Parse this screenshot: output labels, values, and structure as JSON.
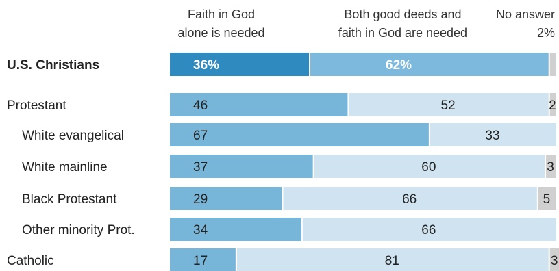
{
  "chart_data": {
    "type": "bar",
    "stacked": true,
    "orientation": "horizontal",
    "xlim": [
      0,
      100
    ],
    "legend_placement": "top",
    "series": [
      {
        "name": "Faith in God alone is needed",
        "name_lines": [
          "Faith in God",
          "alone is needed"
        ],
        "color": "#78b6d9",
        "highlight_color": "#2f8ac0"
      },
      {
        "name": "Both good deeds and faith in God are needed",
        "name_lines": [
          "Both good deeds and",
          "faith in God are needed"
        ],
        "color": "#cfe3f0",
        "highlight_color": "#7cb9dc"
      },
      {
        "name": "No answer",
        "name_lines": [
          "No answer"
        ],
        "color": "#d0d0d0",
        "highlight_color": "#d0d0d0"
      }
    ],
    "rows": [
      {
        "label": "U.S. Christians",
        "bold": true,
        "indent": false,
        "values": [
          36,
          62,
          2
        ],
        "labels": [
          "36%",
          "62%",
          "2%"
        ]
      },
      {
        "label": "Protestant",
        "bold": false,
        "indent": false,
        "values": [
          46,
          52,
          2
        ],
        "labels": [
          "46",
          "52",
          "2"
        ]
      },
      {
        "label": "White evangelical",
        "bold": false,
        "indent": true,
        "values": [
          67,
          33,
          0.4
        ],
        "labels": [
          "67",
          "33",
          ""
        ]
      },
      {
        "label": "White mainline",
        "bold": false,
        "indent": true,
        "values": [
          37,
          60,
          3
        ],
        "labels": [
          "37",
          "60",
          "3"
        ]
      },
      {
        "label": "Black Protestant",
        "bold": false,
        "indent": true,
        "values": [
          29,
          66,
          5
        ],
        "labels": [
          "29",
          "66",
          "5"
        ]
      },
      {
        "label": "Other minority Prot.",
        "bold": false,
        "indent": true,
        "values": [
          34,
          66,
          0
        ],
        "labels": [
          "34",
          "66",
          ""
        ]
      },
      {
        "label": "Catholic",
        "bold": false,
        "indent": false,
        "values": [
          17,
          81,
          3
        ],
        "labels": [
          "17",
          "81",
          "3"
        ]
      }
    ]
  }
}
